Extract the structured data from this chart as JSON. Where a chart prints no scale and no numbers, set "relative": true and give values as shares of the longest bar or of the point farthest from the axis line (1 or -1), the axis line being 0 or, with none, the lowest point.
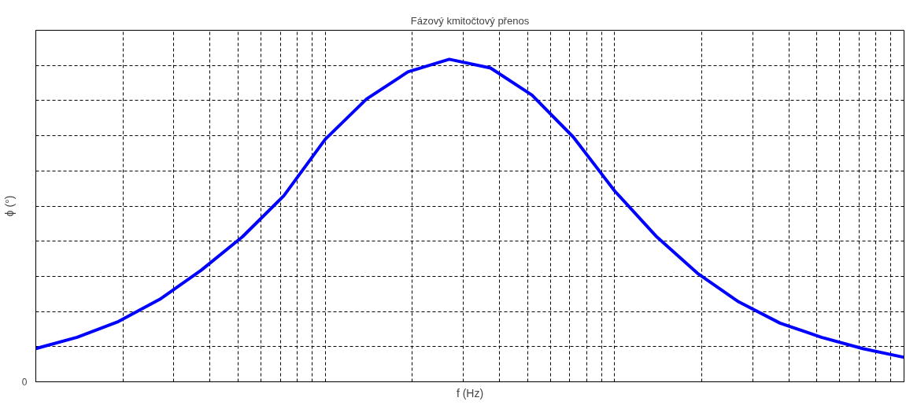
{
  "chart_data": {
    "type": "line",
    "title": "Fázový kmitočtový přenos",
    "xlabel": "f (Hz)",
    "ylabel": "ϕ (°)",
    "relative": true,
    "grid": true,
    "marker": "none",
    "line_style": "solid",
    "annotations": [
      "0"
    ],
    "categories": [
      null,
      null,
      null,
      null,
      null,
      null,
      null,
      null,
      null,
      null,
      null,
      null,
      null,
      null,
      null,
      null,
      null,
      null,
      null,
      null,
      null,
      null
    ],
    "series": [
      {
        "color": "#0000ff",
        "values": [
          0.103,
          0.138,
          0.187,
          0.256,
          0.346,
          0.45,
          0.577,
          0.752,
          0.877,
          0.961,
          1,
          0.973,
          0.889,
          0.759,
          0.592,
          0.452,
          0.337,
          0.248,
          0.182,
          0.138,
          0.103,
          0.076
        ]
      }
    ]
  }
}
